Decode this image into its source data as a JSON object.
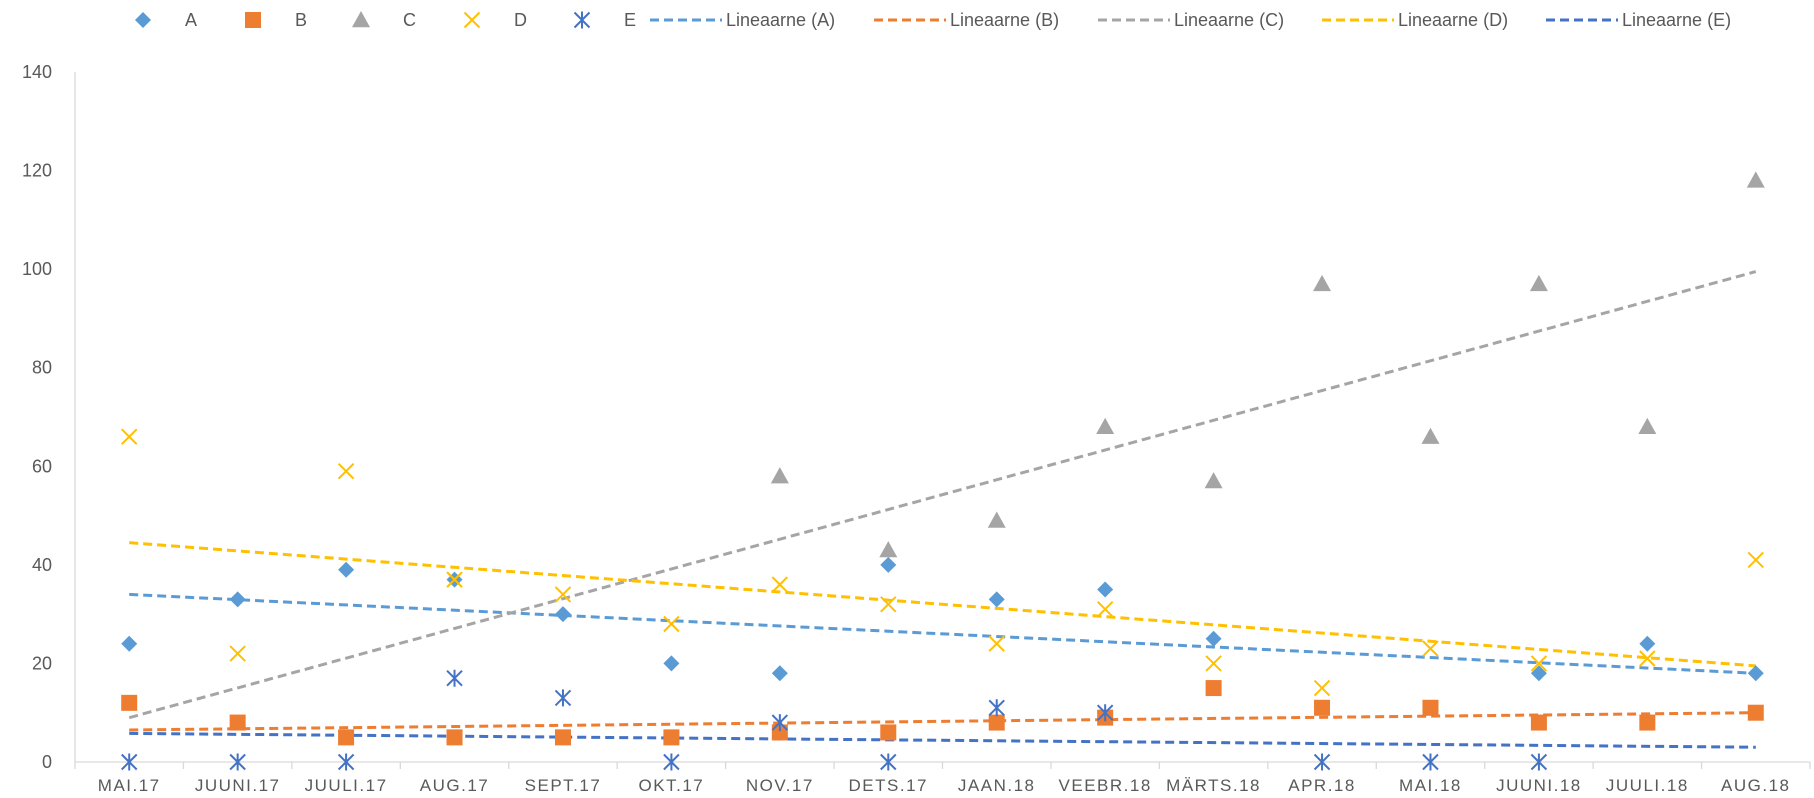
{
  "chart_data": {
    "type": "scatter",
    "title": "",
    "xlabel": "",
    "ylabel": "",
    "ylim": [
      0,
      140
    ],
    "yticks": [
      0,
      20,
      40,
      60,
      80,
      100,
      120,
      140
    ],
    "grid": false,
    "legend_position": "top",
    "categories": [
      "MAI.17",
      "JUUNI.17",
      "JUULI.17",
      "AUG.17",
      "SEPT.17",
      "OKT.17",
      "NOV.17",
      "DETS.17",
      "JAAN.18",
      "VEEBR.18",
      "MÄRTS.18",
      "APR.18",
      "MAI.18",
      "JUUNI.18",
      "JUULI.18",
      "AUG.18"
    ],
    "series": [
      {
        "name": "A",
        "marker": "diamond",
        "color": "#5B9BD5",
        "values": [
          24,
          33,
          39,
          37,
          30,
          20,
          18,
          40,
          33,
          35,
          25,
          null,
          null,
          18,
          24,
          18
        ]
      },
      {
        "name": "B",
        "marker": "square",
        "color": "#ED7D31",
        "values": [
          12,
          8,
          5,
          5,
          5,
          5,
          6,
          6,
          8,
          9,
          15,
          11,
          11,
          8,
          8,
          10
        ]
      },
      {
        "name": "C",
        "marker": "triangle",
        "color": "#A5A5A5",
        "values": [
          null,
          null,
          null,
          null,
          null,
          null,
          58,
          43,
          49,
          68,
          57,
          97,
          66,
          97,
          68,
          118
        ]
      },
      {
        "name": "D",
        "marker": "x",
        "color": "#FFC000",
        "values": [
          66,
          22,
          59,
          37,
          34,
          28,
          36,
          32,
          24,
          31,
          20,
          15,
          23,
          20,
          21,
          41
        ]
      },
      {
        "name": "E",
        "marker": "star",
        "color": "#4472C4",
        "values": [
          0,
          0,
          0,
          17,
          13,
          0,
          8,
          0,
          11,
          10,
          null,
          0,
          0,
          0,
          null,
          null
        ]
      }
    ],
    "trendlines": [
      {
        "name": "Lineaarne (A)",
        "color": "#5B9BD5",
        "start": 34,
        "end": 18
      },
      {
        "name": "Lineaarne (B)",
        "color": "#ED7D31",
        "start": 6.5,
        "end": 10
      },
      {
        "name": "Lineaarne (C)",
        "color": "#A5A5A5",
        "start": 9,
        "end": 99.5
      },
      {
        "name": "Lineaarne (D)",
        "color": "#FFC000",
        "start": 44.5,
        "end": 19.5
      },
      {
        "name": "Lineaarne (E)",
        "color": "#4472C4",
        "start": 5.8,
        "end": 3
      }
    ]
  }
}
